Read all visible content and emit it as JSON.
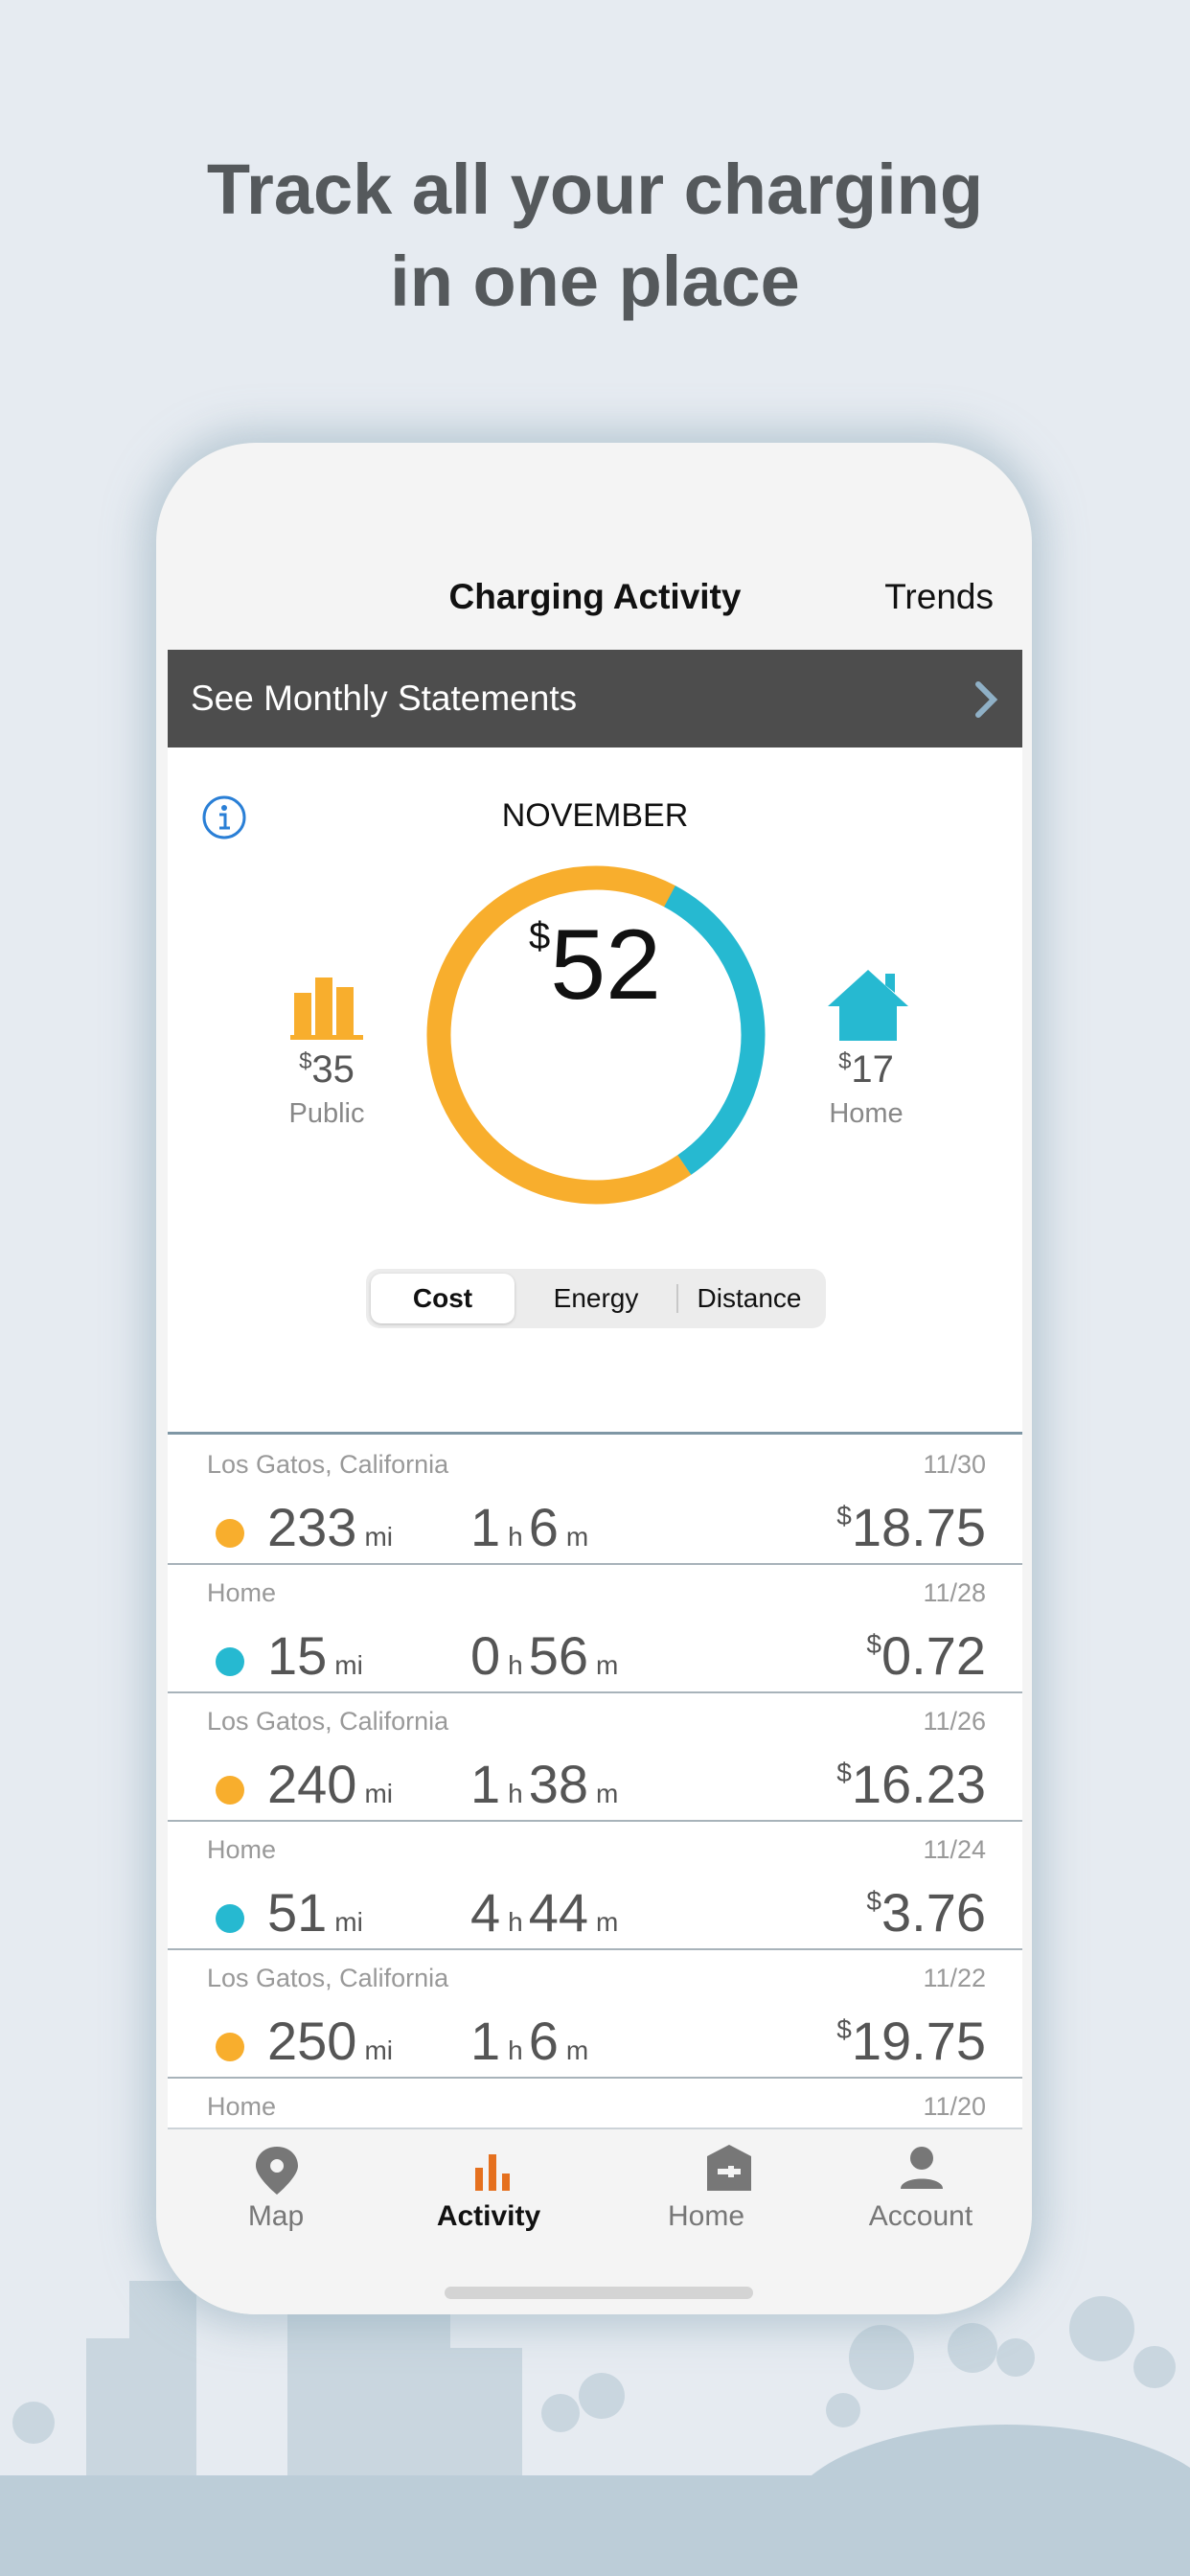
{
  "headline": [
    "Track all your charging",
    "in one place"
  ],
  "nav": {
    "title": "Charging Activity",
    "action": "Trends"
  },
  "banner": "See Monthly Statements",
  "summary": {
    "month": "NOVEMBER",
    "currency": "$",
    "total": 52,
    "public": {
      "label": "Public",
      "amount": 35,
      "color": "#f8ae2d"
    },
    "home": {
      "label": "Home",
      "amount": 17,
      "color": "#26b9d1"
    }
  },
  "segments": [
    "Cost",
    "Energy",
    "Distance"
  ],
  "selected_segment": 0,
  "units": {
    "distance": "mi",
    "hours": "h",
    "minutes": "m"
  },
  "sessions": [
    {
      "location": "Los Gatos, California",
      "date": "11/30",
      "color": "#f8ae2d",
      "distance": "233",
      "hours": "1",
      "minutes": "6",
      "cost": "18.75"
    },
    {
      "location": "Home",
      "date": "11/28",
      "color": "#26b9d1",
      "distance": "15",
      "hours": "0",
      "minutes": "56",
      "cost": "0.72"
    },
    {
      "location": "Los Gatos, California",
      "date": "11/26",
      "color": "#f8ae2d",
      "distance": "240",
      "hours": "1",
      "minutes": "38",
      "cost": "16.23"
    },
    {
      "location": "Home",
      "date": "11/24",
      "color": "#26b9d1",
      "distance": "51",
      "hours": "4",
      "minutes": "44",
      "cost": "3.76"
    },
    {
      "location": "Los Gatos, California",
      "date": "11/22",
      "color": "#f8ae2d",
      "distance": "250",
      "hours": "1",
      "minutes": "6",
      "cost": "19.75"
    },
    {
      "location": "Home",
      "date": "11/20"
    }
  ],
  "tabs": [
    "Map",
    "Activity",
    "Home",
    "Account"
  ],
  "active_tab": 1
}
